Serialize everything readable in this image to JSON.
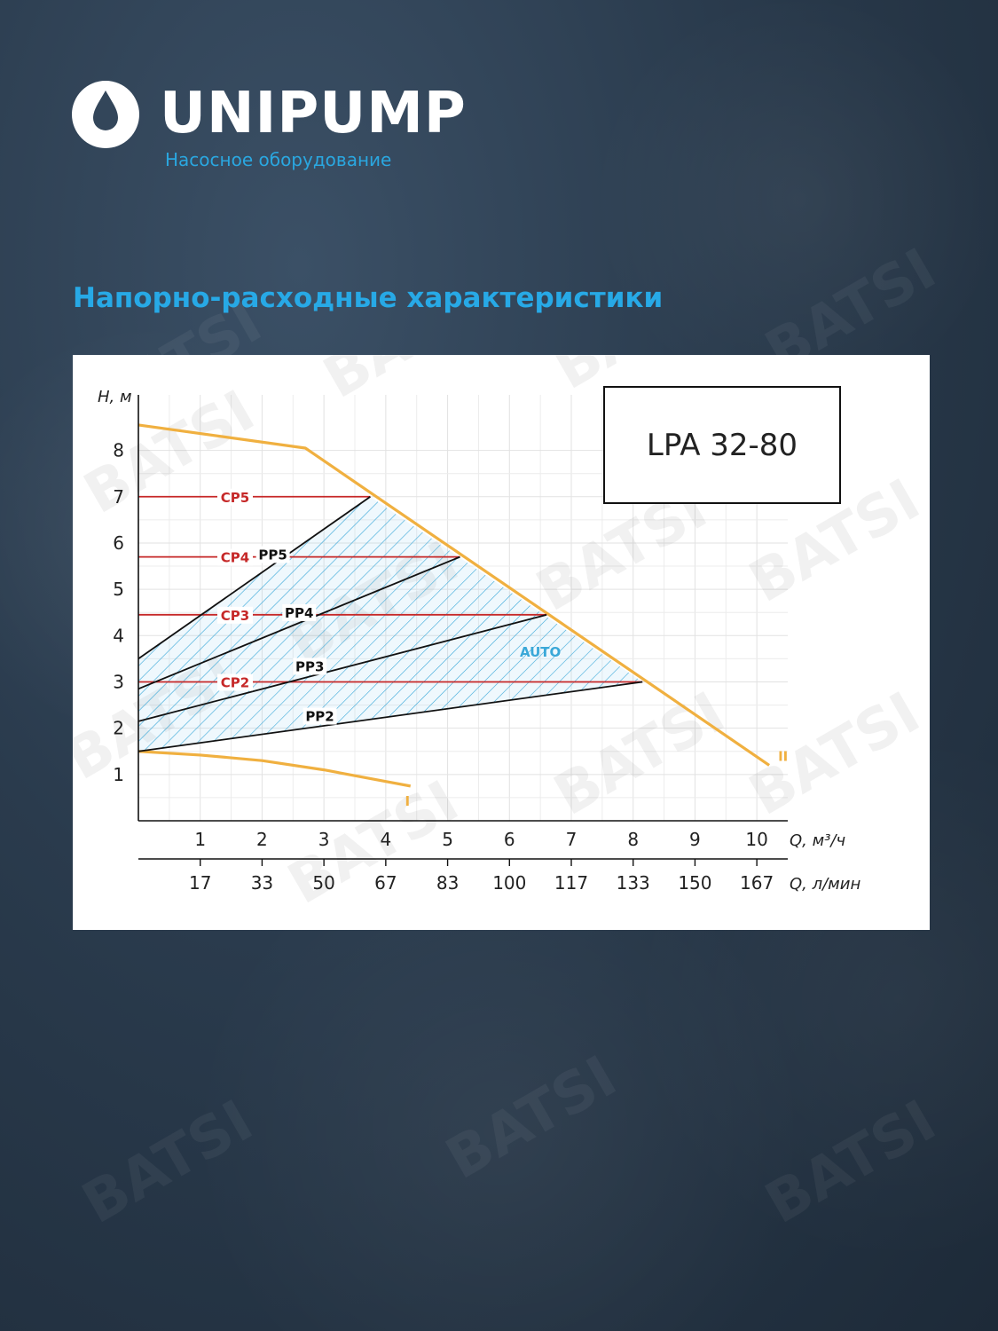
{
  "header": {
    "brand": "UNIPUMP",
    "subtitle": "Насосное оборудование",
    "logo_icon": "water-drop-icon"
  },
  "page_title": "Напорно-расходные характеристики",
  "watermark": "BATSI",
  "colors": {
    "accent": "#27a9e6",
    "limit_curve": "#f0b040",
    "cp_lines": "#c62828",
    "pp_lines": "#111111",
    "auto_hatch": "#3aa8d8"
  },
  "chart_data": {
    "type": "line",
    "title": "LPA 32-80",
    "xlabel": "Q, м³/ч",
    "x2label": "Q, л/мин",
    "ylabel": "H, м",
    "xlim": [
      0,
      10.5
    ],
    "ylim": [
      0,
      9.2
    ],
    "x_ticks": [
      "1",
      "2",
      "3",
      "4",
      "5",
      "6",
      "7",
      "8",
      "9",
      "10"
    ],
    "x2_ticks": [
      "17",
      "33",
      "50",
      "67",
      "83",
      "100",
      "117",
      "133",
      "150",
      "167"
    ],
    "y_ticks": [
      "1",
      "2",
      "3",
      "4",
      "5",
      "6",
      "7",
      "8"
    ],
    "grid": true,
    "series": [
      {
        "name": "II",
        "kind": "max",
        "x": [
          0,
          2.7,
          10.2
        ],
        "y": [
          8.55,
          8.05,
          1.2
        ]
      },
      {
        "name": "I",
        "kind": "min",
        "x": [
          0,
          1,
          2,
          3,
          4,
          4.4
        ],
        "y": [
          1.5,
          1.42,
          1.3,
          1.1,
          0.85,
          0.75
        ]
      },
      {
        "name": "CP5",
        "kind": "cp",
        "x": [
          0,
          3.75
        ],
        "y": [
          7.0,
          7.0
        ]
      },
      {
        "name": "CP4",
        "kind": "cp",
        "x": [
          0,
          5.2
        ],
        "y": [
          5.7,
          5.7
        ]
      },
      {
        "name": "CP3",
        "kind": "cp",
        "x": [
          0,
          6.6
        ],
        "y": [
          4.45,
          4.45
        ]
      },
      {
        "name": "CP2",
        "kind": "cp",
        "x": [
          0,
          8.15
        ],
        "y": [
          3.0,
          3.0
        ]
      },
      {
        "name": "PP5",
        "kind": "pp",
        "x": [
          0,
          3.75
        ],
        "y": [
          3.5,
          7.0
        ]
      },
      {
        "name": "PP4",
        "kind": "pp",
        "x": [
          0,
          5.2
        ],
        "y": [
          2.85,
          5.7
        ]
      },
      {
        "name": "PP3",
        "kind": "pp",
        "x": [
          0,
          6.6
        ],
        "y": [
          2.15,
          4.45
        ]
      },
      {
        "name": "PP2",
        "kind": "pp",
        "x": [
          0,
          8.15
        ],
        "y": [
          1.5,
          3.0
        ]
      }
    ],
    "region_label": "AUTO"
  }
}
